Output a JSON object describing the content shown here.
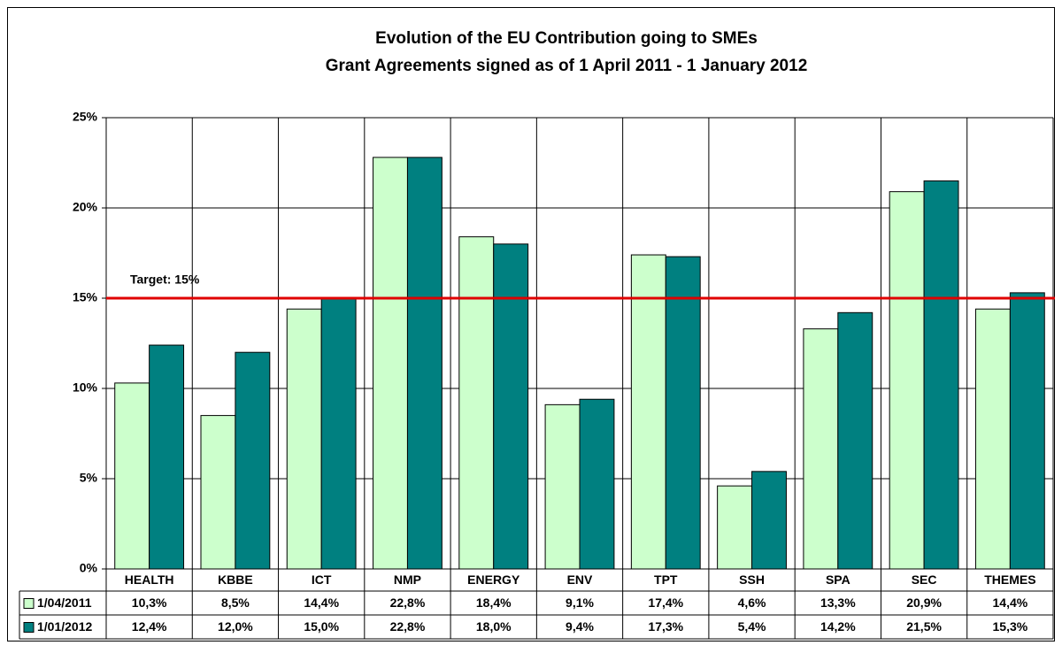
{
  "chart_data": {
    "type": "bar",
    "title": "Evolution of the EU Contribution going to SMEs",
    "subtitle": "Grant Agreements signed as of 1 April 2011 - 1 January 2012",
    "categories": [
      "HEALTH",
      "KBBE",
      "ICT",
      "NMP",
      "ENERGY",
      "ENV",
      "TPT",
      "SSH",
      "SPA",
      "SEC",
      "THEMES"
    ],
    "series": [
      {
        "name": "1/04/2011",
        "color": "#ccffcc",
        "values": [
          10.3,
          8.5,
          14.4,
          22.8,
          18.4,
          9.1,
          17.4,
          4.6,
          13.3,
          20.9,
          14.4
        ],
        "value_labels": [
          "10,3%",
          "8,5%",
          "14,4%",
          "22,8%",
          "18,4%",
          "9,1%",
          "17,4%",
          "4,6%",
          "13,3%",
          "20,9%",
          "14,4%"
        ]
      },
      {
        "name": "1/01/2012",
        "color": "#008080",
        "values": [
          12.4,
          12.0,
          15.0,
          22.8,
          18.0,
          9.4,
          17.3,
          5.4,
          14.2,
          21.5,
          15.3
        ],
        "value_labels": [
          "12,4%",
          "12,0%",
          "15,0%",
          "22,8%",
          "18,0%",
          "9,4%",
          "17,3%",
          "5,4%",
          "14,2%",
          "21,5%",
          "15,3%"
        ]
      }
    ],
    "ylim": [
      0,
      25
    ],
    "yticks": [
      {
        "value": 0,
        "label": "0%"
      },
      {
        "value": 5,
        "label": "5%"
      },
      {
        "value": 10,
        "label": "10%"
      },
      {
        "value": 15,
        "label": "15%"
      },
      {
        "value": 20,
        "label": "20%"
      },
      {
        "value": 25,
        "label": "25%"
      }
    ],
    "grid": true,
    "target": {
      "value": 15,
      "label": "Target: 15%",
      "color": "#e00000"
    }
  }
}
